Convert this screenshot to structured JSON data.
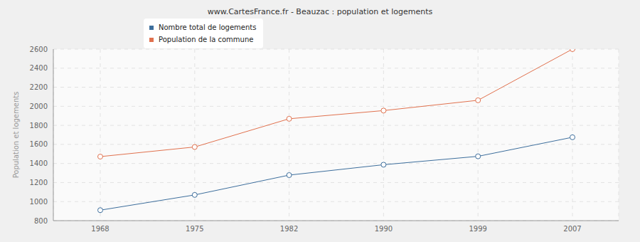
{
  "chart_data": {
    "type": "line",
    "title": "www.CartesFrance.fr - Beauzac : population et logements",
    "y_label": "Population et logements",
    "categories": [
      "1968",
      "1975",
      "1982",
      "1990",
      "1999",
      "2007"
    ],
    "series": [
      {
        "name": "Nombre total de logements",
        "color": "#3d6e9c",
        "values": [
          910,
          1070,
          1278,
          1387,
          1475,
          1675
        ],
        "marker": "circle"
      },
      {
        "name": "Population de la commune",
        "color": "#e0714e",
        "values": [
          1472,
          1573,
          1869,
          1955,
          2063,
          2600
        ],
        "marker": "circle"
      }
    ],
    "ylim": [
      800,
      2600
    ],
    "yticks": [
      800,
      1000,
      1200,
      1400,
      1600,
      1800,
      2000,
      2200,
      2400,
      2600
    ],
    "grid": true,
    "legend": "top"
  }
}
